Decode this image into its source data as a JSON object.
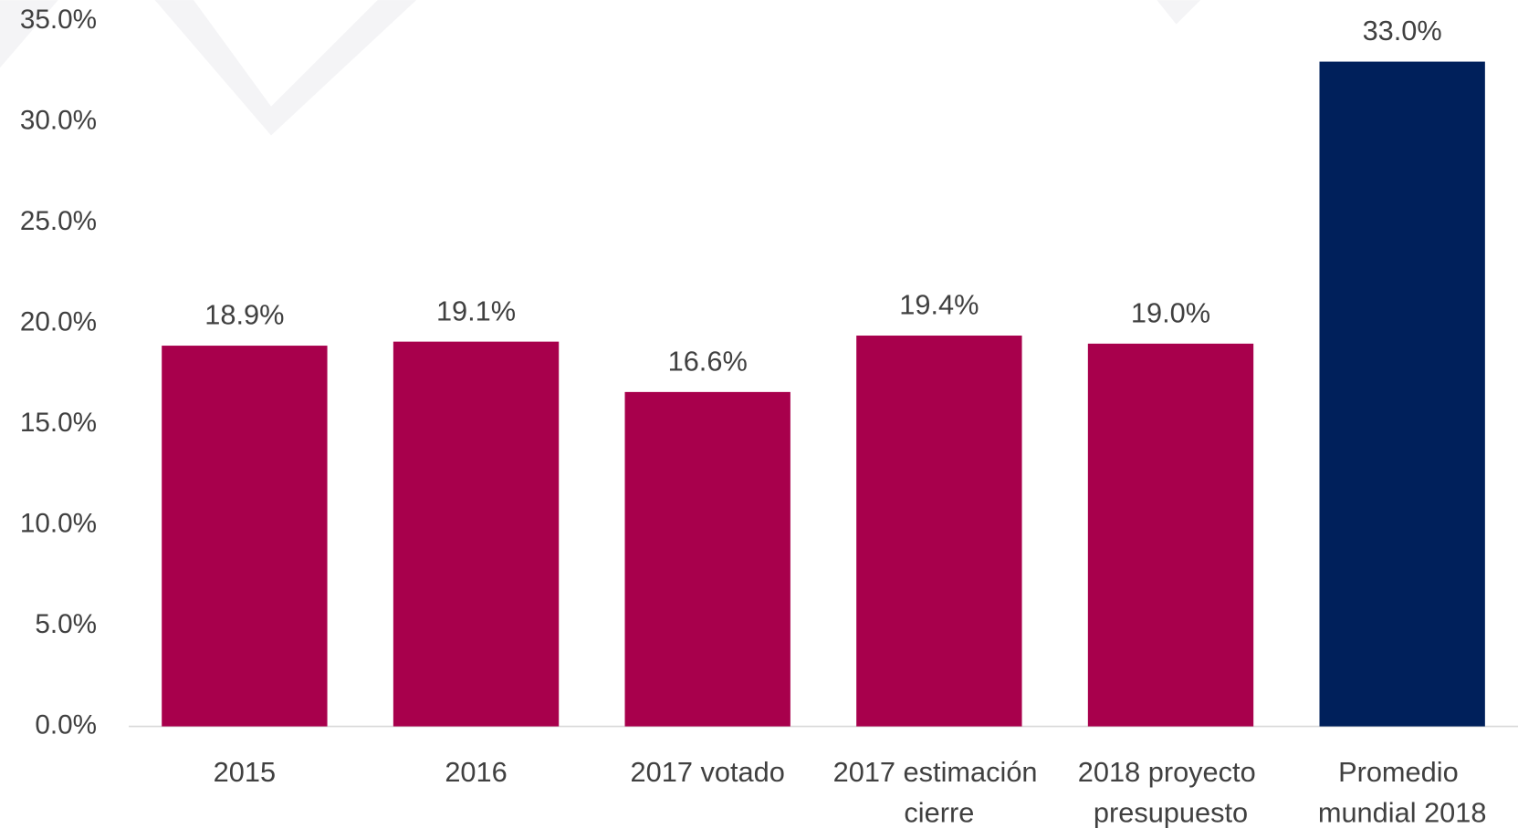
{
  "chart_data": {
    "type": "bar",
    "categories": [
      "2015",
      "2016",
      "2017 votado",
      "2017 estimación cierre",
      "2018 proyecto presupuesto",
      "Promedio mundial 2018"
    ],
    "values": [
      18.9,
      19.1,
      16.6,
      19.4,
      19.0,
      33.0
    ],
    "value_labels": [
      "18.9%",
      "19.1%",
      "16.6%",
      "19.4%",
      "19.0%",
      "33.0%"
    ],
    "colors": [
      "#a8004c",
      "#a8004c",
      "#a8004c",
      "#a8004c",
      "#a8004c",
      "#00205b"
    ],
    "ylim": [
      0,
      35
    ],
    "yticks": [
      {
        "value": 0,
        "label": "0.0%"
      },
      {
        "value": 5,
        "label": "5.0%"
      },
      {
        "value": 10,
        "label": "10.0%"
      },
      {
        "value": 15,
        "label": "15.0%"
      },
      {
        "value": 20,
        "label": "20.0%"
      },
      {
        "value": 25,
        "label": "25.0%"
      },
      {
        "value": 30,
        "label": "30.0%"
      },
      {
        "value": 35,
        "label": "35.0%"
      }
    ],
    "grid": false
  }
}
